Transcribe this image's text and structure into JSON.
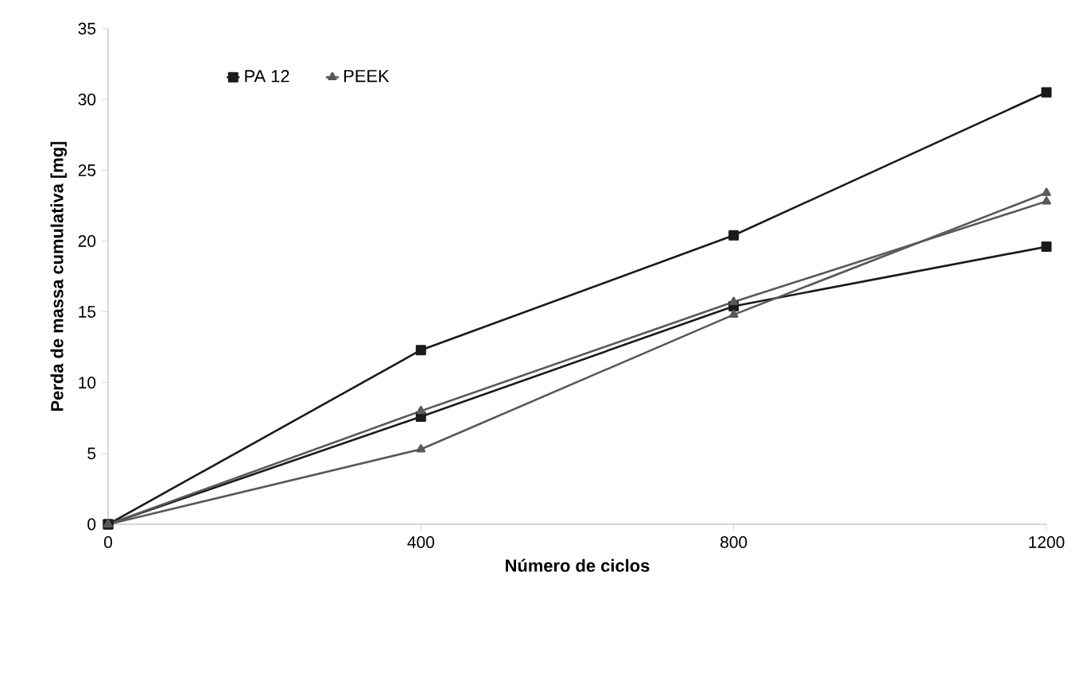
{
  "chart_data": {
    "type": "line",
    "xlabel": "Número de ciclos",
    "ylabel": "Perda de massa cumulativa [mg]",
    "x": [
      0,
      400,
      800,
      1200
    ],
    "series": [
      {
        "name": "PA 12",
        "color": "#1a1a1a",
        "marker": "square",
        "values": [
          0,
          12.3,
          20.4,
          30.5
        ]
      },
      {
        "color": "#1a1a1a",
        "marker": "square",
        "values": [
          0,
          7.6,
          15.4,
          19.6
        ]
      },
      {
        "name": "PEEK",
        "color": "#595959",
        "marker": "triangle",
        "values": [
          0,
          8.0,
          15.7,
          22.8
        ]
      },
      {
        "color": "#595959",
        "marker": "triangle",
        "values": [
          0,
          5.3,
          14.8,
          23.4
        ]
      }
    ],
    "xlim": [
      0,
      1200
    ],
    "xticks": [
      0,
      400,
      800,
      1200
    ],
    "ylim": [
      0,
      35
    ],
    "yticks": [
      0,
      5,
      10,
      15,
      20,
      25,
      30,
      35
    ],
    "legend": "top left",
    "grid": false,
    "line_style": "solid"
  }
}
